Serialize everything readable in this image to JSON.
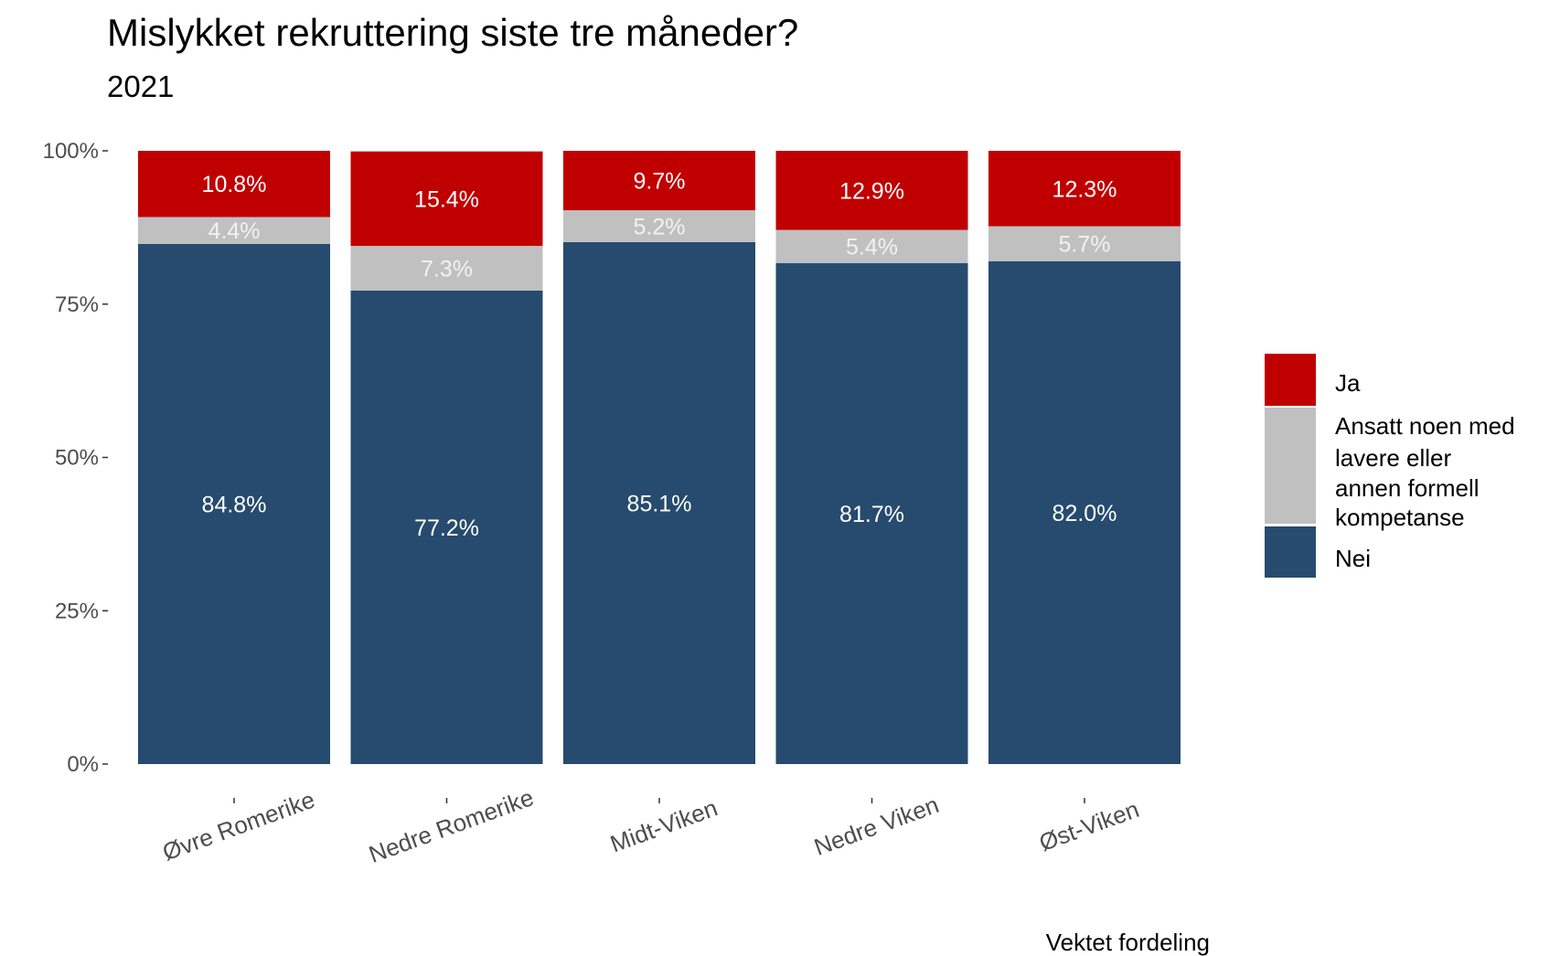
{
  "chart_data": {
    "type": "bar",
    "stacked": true,
    "percent": true,
    "title": "Mislykket rekruttering siste tre måneder?",
    "subtitle": "2021",
    "caption": "Vektet fordeling",
    "xlabel": "",
    "ylabel": "",
    "ylim": [
      0,
      100
    ],
    "y_ticks": [
      "0%",
      "25%",
      "50%",
      "75%",
      "100%"
    ],
    "grid": false,
    "legend_position": "right",
    "categories": [
      "Øvre Romerike",
      "Nedre Romerike",
      "Midt-Viken",
      "Nedre Viken",
      "Øst-Viken"
    ],
    "series": [
      {
        "name": "Nei",
        "color": "#264b6e",
        "label_color": "#ffffff",
        "values": [
          84.8,
          77.2,
          85.1,
          81.7,
          82.0
        ],
        "labels": [
          "84.8%",
          "77.2%",
          "85.1%",
          "81.7%",
          "82.0%"
        ]
      },
      {
        "name": "Ansatt noen med lavere eller annen formell kompetanse",
        "color": "#c0c0c0",
        "label_color": "#f2f2f2",
        "values": [
          4.4,
          7.3,
          5.2,
          5.4,
          5.7
        ],
        "labels": [
          "4.4%",
          "7.3%",
          "5.2%",
          "5.4%",
          "5.7%"
        ]
      },
      {
        "name": "Ja",
        "color": "#c00000",
        "label_color": "#ffffff",
        "values": [
          10.8,
          15.4,
          9.7,
          12.9,
          12.3
        ],
        "labels": [
          "10.8%",
          "15.4%",
          "9.7%",
          "12.9%",
          "12.3%"
        ]
      }
    ],
    "legend": [
      {
        "name": "Ja",
        "color": "#c00000",
        "lines": [
          "Ja"
        ]
      },
      {
        "name": "Ansatt noen med lavere eller annen formell kompetanse",
        "color": "#c0c0c0",
        "lines": [
          "Ansatt noen med",
          "lavere eller",
          "annen formell",
          "kompetanse"
        ]
      },
      {
        "name": "Nei",
        "color": "#264b6e",
        "lines": [
          "Nei"
        ]
      }
    ]
  }
}
